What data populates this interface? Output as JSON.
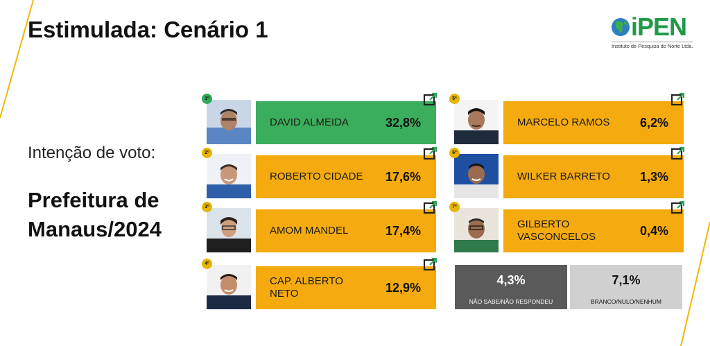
{
  "header": {
    "title": "Estimulada: Cenário 1"
  },
  "logo": {
    "text": "iPEN",
    "subtitle": "Instituto de Pesquisa do Norte Ltda."
  },
  "left_panel": {
    "subtitle": "Intenção de voto:",
    "heading": "Prefeitura de Manaus/2024"
  },
  "colors": {
    "leader": "#3aae5c",
    "others": "#f5ab0f",
    "undecided": "#5a5a5a",
    "blank": "#d0d0d0",
    "accent_line": "#f2b705"
  },
  "chart_data": {
    "type": "table",
    "title": "Estimulada: Cenário 1",
    "candidates": [
      {
        "rank": "1º",
        "name": "DAVID ALMEIDA",
        "value": 32.8,
        "label": "32,8%"
      },
      {
        "rank": "2º",
        "name": "ROBERTO CIDADE",
        "value": 17.6,
        "label": "17,6%"
      },
      {
        "rank": "3º",
        "name": "AMOM MANDEL",
        "value": 17.4,
        "label": "17,4%"
      },
      {
        "rank": "4º",
        "name": "CAP. ALBERTO NETO",
        "value": 12.9,
        "label": "12,9%"
      },
      {
        "rank": "5º",
        "name": "MARCELO RAMOS",
        "value": 6.2,
        "label": "6,2%"
      },
      {
        "rank": "6º",
        "name": "WILKER BARRETO",
        "value": 1.3,
        "label": "1,3%"
      },
      {
        "rank": "7º",
        "name": "GILBERTO VASCONCELOS",
        "value": 0.4,
        "label": "0,4%"
      }
    ],
    "others": [
      {
        "name": "NÃO SABE/NÃO RESPONDEU",
        "value": 4.3,
        "label": "4,3%"
      },
      {
        "name": "BRANCO/NULO/NENHUM",
        "value": 7.1,
        "label": "7,1%"
      }
    ]
  }
}
